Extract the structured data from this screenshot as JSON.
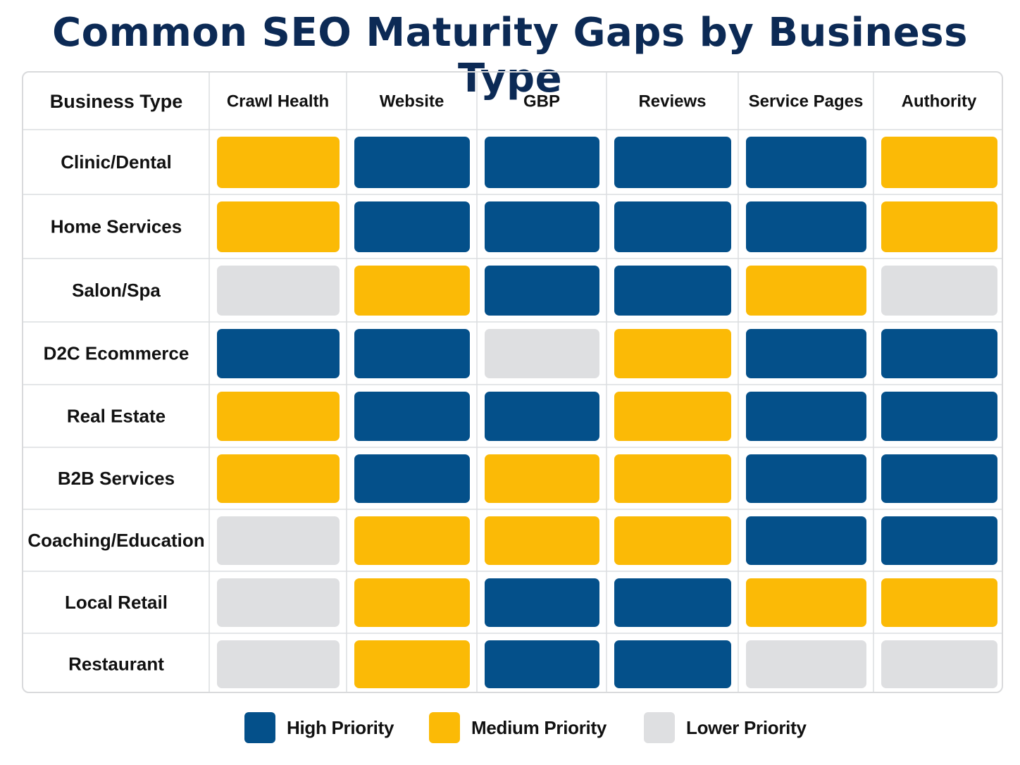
{
  "title": "Common SEO Maturity Gaps by Business Type",
  "chart_data": {
    "type": "heatmap",
    "row_header": "Business Type",
    "columns": [
      "Crawl Health",
      "Website",
      "GBP",
      "Reviews",
      "Service Pages",
      "Authority"
    ],
    "rows": [
      "Clinic/Dental",
      "Home Services",
      "Salon/Spa",
      "D2C Ecommerce",
      "Real Estate",
      "B2B Services",
      "Coaching/Education",
      "Local Retail",
      "Restaurant"
    ],
    "values": [
      [
        "Medium Priority",
        "High Priority",
        "High Priority",
        "High Priority",
        "High Priority",
        "Medium Priority"
      ],
      [
        "Medium Priority",
        "High Priority",
        "High Priority",
        "High Priority",
        "High Priority",
        "Medium Priority"
      ],
      [
        "Lower Priority",
        "Medium Priority",
        "High Priority",
        "High Priority",
        "Medium Priority",
        "Lower Priority"
      ],
      [
        "High Priority",
        "High Priority",
        "Lower Priority",
        "Medium Priority",
        "High Priority",
        "High Priority"
      ],
      [
        "Medium Priority",
        "High Priority",
        "High Priority",
        "Medium Priority",
        "High Priority",
        "High Priority"
      ],
      [
        "Medium Priority",
        "High Priority",
        "Medium Priority",
        "Medium Priority",
        "High Priority",
        "High Priority"
      ],
      [
        "Lower Priority",
        "Medium Priority",
        "Medium Priority",
        "Medium Priority",
        "High Priority",
        "High Priority"
      ],
      [
        "Lower Priority",
        "Medium Priority",
        "High Priority",
        "High Priority",
        "Medium Priority",
        "Medium Priority"
      ],
      [
        "Lower Priority",
        "Medium Priority",
        "High Priority",
        "High Priority",
        "Lower Priority",
        "Lower Priority"
      ]
    ],
    "legend": [
      {
        "label": "High Priority",
        "color": "#04508a"
      },
      {
        "label": "Medium Priority",
        "color": "#fbba06"
      },
      {
        "label": "Lower Priority",
        "color": "#dedfe1"
      }
    ],
    "legend_position": "bottom"
  }
}
